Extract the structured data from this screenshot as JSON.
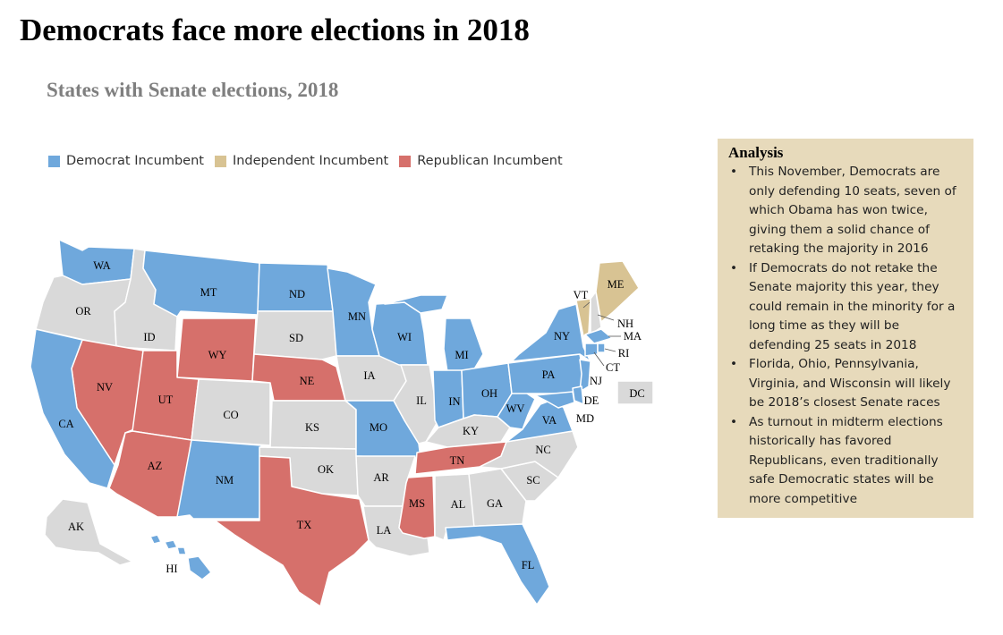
{
  "title": "Democrats face more elections in 2018",
  "subtitle": "States with Senate elections, 2018",
  "colors": {
    "democrat": "#6fa8dc",
    "independent": "#d8c393",
    "republican": "#d6706b",
    "none": "#d9d9d9"
  },
  "legend": [
    {
      "label": "Democrat Incumbent",
      "color": "#6fa8dc"
    },
    {
      "label": "Independent Incumbent",
      "color": "#d8c393"
    },
    {
      "label": "Republican Incumbent",
      "color": "#d6706b"
    }
  ],
  "analysis": {
    "heading": "Analysis",
    "bullets": [
      "This November, Democrats are only defending 10 seats, seven of which Obama has won twice, giving them a solid chance of retaking the majority in 2016",
      "If Democrats do not retake the Senate majority this year, they could remain in the minority for a long time as they will be defending 25 seats in 2018",
      "Florida, Ohio, Pennsylvania, Virginia, and Wisconsin will likely be 2018’s closest Senate races",
      "As turnout in midterm elections historically has favored Republicans, even traditionally safe Democratic states will be more competitive"
    ]
  },
  "states": {
    "WA": "democrat",
    "OR": "none",
    "CA": "democrat",
    "NV": "republican",
    "ID": "none",
    "MT": "democrat",
    "WY": "republican",
    "UT": "republican",
    "AZ": "republican",
    "CO": "none",
    "NM": "democrat",
    "ND": "democrat",
    "SD": "none",
    "NE": "republican",
    "KS": "none",
    "OK": "none",
    "TX": "republican",
    "MN": "democrat",
    "IA": "none",
    "MO": "democrat",
    "AR": "none",
    "LA": "none",
    "WI": "democrat",
    "IL": "none",
    "MS": "republican",
    "MI": "democrat",
    "IN": "democrat",
    "KY": "none",
    "TN": "republican",
    "AL": "none",
    "OH": "democrat",
    "GA": "none",
    "FL": "democrat",
    "SC": "none",
    "NC": "none",
    "VA": "democrat",
    "WV": "democrat",
    "PA": "democrat",
    "NY": "democrat",
    "VT": "independent",
    "NH": "none",
    "ME": "independent",
    "MA": "democrat",
    "RI": "democrat",
    "CT": "democrat",
    "NJ": "democrat",
    "DE": "democrat",
    "MD": "democrat",
    "DC": "none",
    "AK": "none",
    "HI": "democrat"
  }
}
